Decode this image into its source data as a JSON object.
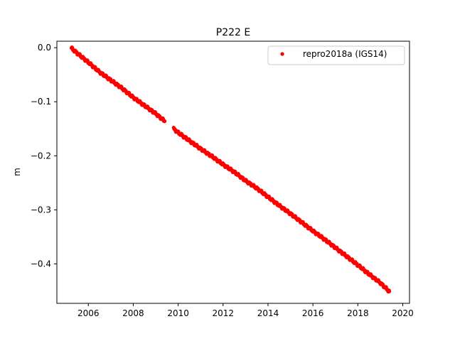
{
  "chart_data": {
    "type": "scatter",
    "title": "P222 E",
    "xlabel": "",
    "ylabel": "m",
    "xlim": [
      2004.6,
      2020.3
    ],
    "ylim": [
      -0.473,
      0.012
    ],
    "x_ticks": [
      2006,
      2008,
      2010,
      2012,
      2014,
      2016,
      2018,
      2020
    ],
    "x_tick_labels": [
      "2006",
      "2008",
      "2010",
      "2012",
      "2014",
      "2016",
      "2018",
      "2020"
    ],
    "y_ticks": [
      0.0,
      -0.1,
      -0.2,
      -0.3,
      -0.4
    ],
    "y_tick_labels": [
      "0.0",
      "−0.1",
      "−0.2",
      "−0.3",
      "−0.4"
    ],
    "grid": false,
    "legend_position": "top-right",
    "series": [
      {
        "name": "repro2018a (IGS14)",
        "color": "#ff0000",
        "marker": "circle",
        "segments": [
          {
            "x": [
              2005.25,
              2005.5,
              2006.0,
              2006.5,
              2007.0,
              2007.5,
              2008.0,
              2008.5,
              2009.0,
              2009.4
            ],
            "y": [
              -0.001,
              -0.01,
              -0.027,
              -0.045,
              -0.06,
              -0.075,
              -0.092,
              -0.107,
              -0.122,
              -0.136
            ]
          },
          {
            "x": [
              2009.8,
              2010.0,
              2010.5,
              2011.0,
              2011.5,
              2012.0,
              2012.5,
              2013.0,
              2013.5,
              2014.0,
              2014.5,
              2015.0,
              2015.5,
              2016.0,
              2016.5,
              2017.0,
              2017.5,
              2018.0,
              2018.5,
              2019.0,
              2019.4
            ],
            "y": [
              -0.15,
              -0.157,
              -0.172,
              -0.187,
              -0.201,
              -0.216,
              -0.23,
              -0.246,
              -0.26,
              -0.276,
              -0.292,
              -0.307,
              -0.323,
              -0.339,
              -0.354,
              -0.37,
              -0.386,
              -0.402,
              -0.419,
              -0.435,
              -0.451
            ]
          }
        ]
      }
    ]
  }
}
